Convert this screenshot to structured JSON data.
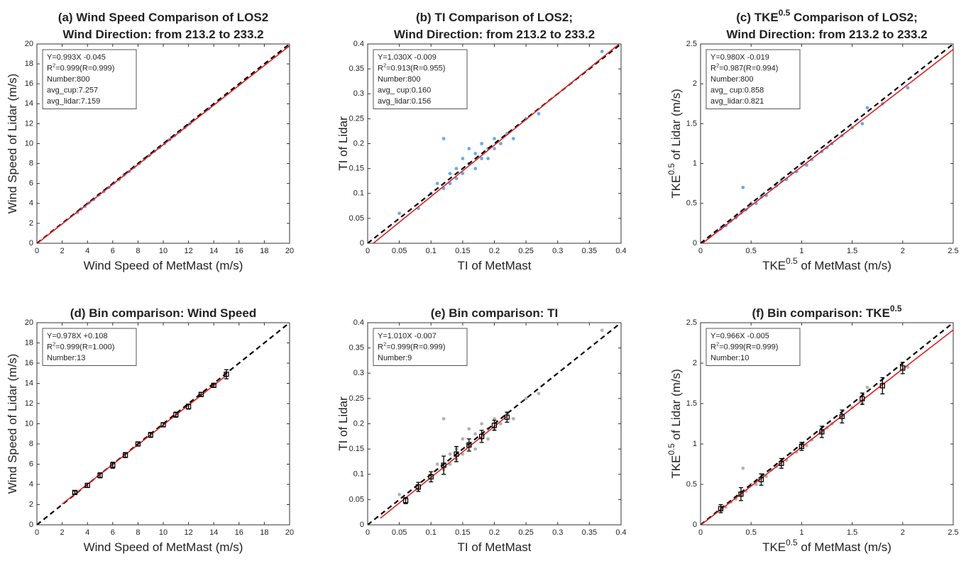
{
  "chart_data": [
    {
      "type": "scatter",
      "title": [
        [
          "(a) Wind Speed Comparison of LOS2"
        ],
        [
          "Wind Direction: from 213.2 to 233.2"
        ]
      ],
      "xlabel": [
        "Wind Speed of MetMast (m/s)"
      ],
      "ylabel": [
        "Wind Speed of Lidar (m/s)"
      ],
      "xlim": [
        0,
        20
      ],
      "ylim": [
        0,
        20
      ],
      "xticks": [
        0,
        2,
        4,
        6,
        8,
        10,
        12,
        14,
        16,
        18,
        20
      ],
      "yticks": [
        0,
        2,
        4,
        6,
        8,
        10,
        12,
        14,
        16,
        18,
        20
      ],
      "annotation": [
        [
          "Y=0.993X -0.045"
        ],
        [
          "R",
          {
            "text": "2",
            "sup": true
          },
          "=0.999(R=0.999)"
        ],
        [
          "Number:800"
        ],
        [
          "avg_cup:7.257"
        ],
        [
          "avg_lidar:7.159"
        ]
      ],
      "series": [
        {
          "kind": "points",
          "color": "#3a8fd9",
          "x": [
            3.2,
            3.5,
            3.8,
            4.1,
            4.5,
            4.9,
            5.3,
            5.7,
            6.1,
            6.5,
            6.9,
            7.3,
            7.7,
            8.1,
            8.5,
            8.9,
            9.3,
            9.7,
            10.1,
            10.5,
            10.9,
            11.3,
            11.7,
            12.1,
            13.6
          ],
          "values": [
            3.1,
            3.45,
            3.7,
            4.05,
            4.4,
            4.85,
            5.2,
            5.6,
            6.05,
            6.4,
            6.85,
            7.2,
            7.65,
            8.0,
            8.45,
            8.8,
            9.25,
            9.6,
            10.0,
            10.4,
            10.8,
            11.2,
            11.6,
            12.0,
            13.5
          ]
        },
        {
          "kind": "line",
          "color": "#000000",
          "dash": true,
          "x": [
            0,
            20
          ],
          "values": [
            0,
            20
          ]
        },
        {
          "kind": "line",
          "color": "#e02020",
          "x": [
            0,
            20
          ],
          "values": [
            -0.045,
            19.815
          ]
        }
      ]
    },
    {
      "type": "scatter",
      "title": [
        [
          "(b) TI Comparison of LOS2;"
        ],
        [
          "Wind Direction: from 213.2 to 233.2"
        ]
      ],
      "xlabel": [
        "TI of MetMast"
      ],
      "ylabel": [
        "TI of Lidar"
      ],
      "xlim": [
        0,
        0.4
      ],
      "ylim": [
        0,
        0.4
      ],
      "xticks": [
        0,
        0.05,
        0.1,
        0.15,
        0.2,
        0.25,
        0.3,
        0.35,
        0.4
      ],
      "yticks": [
        0,
        0.05,
        0.1,
        0.15,
        0.2,
        0.25,
        0.3,
        0.35,
        0.4
      ],
      "annotation": [
        [
          "Y=1.030X -0.009"
        ],
        [
          "R",
          {
            "text": "2",
            "sup": true
          },
          "=0.913(R=0.955)"
        ],
        [
          "Number:800"
        ],
        [
          "avg_ cup:0.160"
        ],
        [
          "avg_lidar:0.156"
        ]
      ],
      "series": [
        {
          "kind": "points",
          "color": "#3a8fd9",
          "x": [
            0.05,
            0.08,
            0.1,
            0.11,
            0.12,
            0.12,
            0.13,
            0.13,
            0.14,
            0.14,
            0.15,
            0.15,
            0.16,
            0.16,
            0.17,
            0.17,
            0.18,
            0.18,
            0.19,
            0.19,
            0.2,
            0.2,
            0.21,
            0.22,
            0.23,
            0.25,
            0.27,
            0.37
          ],
          "values": [
            0.06,
            0.07,
            0.1,
            0.12,
            0.11,
            0.21,
            0.14,
            0.12,
            0.15,
            0.13,
            0.17,
            0.14,
            0.16,
            0.19,
            0.15,
            0.18,
            0.17,
            0.2,
            0.19,
            0.17,
            0.21,
            0.19,
            0.2,
            0.22,
            0.21,
            0.25,
            0.26,
            0.385
          ]
        },
        {
          "kind": "line",
          "color": "#000000",
          "dash": true,
          "x": [
            0,
            0.4
          ],
          "values": [
            0,
            0.4
          ]
        },
        {
          "kind": "line",
          "color": "#e02020",
          "x": [
            0.009,
            0.4
          ],
          "values": [
            0,
            0.403
          ]
        }
      ]
    },
    {
      "type": "scatter",
      "title": [
        [
          "(c) TKE",
          {
            "text": "0.5",
            "sup": true
          },
          " Comparison of LOS2;"
        ],
        [
          "Wind Direction: from 213.2 to 233.2"
        ]
      ],
      "xlabel": [
        "TKE",
        {
          "text": "0.5",
          "sup": true
        },
        " of MetMast (m/s)"
      ],
      "ylabel": [
        "TKE",
        {
          "text": "0.5",
          "sup": true
        },
        " of Lidar (m/s)"
      ],
      "xlim": [
        0,
        2.5
      ],
      "ylim": [
        0,
        2.5
      ],
      "xticks": [
        0,
        0.5,
        1,
        1.5,
        2,
        2.5
      ],
      "yticks": [
        0,
        0.5,
        1,
        1.5,
        2,
        2.5
      ],
      "annotation": [
        [
          "Y=0.980X -0.019"
        ],
        [
          "R",
          {
            "text": "2",
            "sup": true
          },
          "=0.987(R=0.994)"
        ],
        [
          "Number:800"
        ],
        [
          "avg_ cup:0.858"
        ],
        [
          "avg_lidar:0.821"
        ]
      ],
      "series": [
        {
          "kind": "points",
          "color": "#3a8fd9",
          "x": [
            0.2,
            0.25,
            0.3,
            0.35,
            0.4,
            0.42,
            0.45,
            0.5,
            0.55,
            0.6,
            0.65,
            0.7,
            0.75,
            0.8,
            0.85,
            0.9,
            0.95,
            1.0,
            1.05,
            1.1,
            1.2,
            1.25,
            1.3,
            1.4,
            1.5,
            1.6,
            1.65,
            1.8,
            2.05
          ],
          "values": [
            0.18,
            0.22,
            0.28,
            0.32,
            0.38,
            0.7,
            0.42,
            0.5,
            0.5,
            0.58,
            0.6,
            0.68,
            0.72,
            0.78,
            0.8,
            0.88,
            0.9,
            1.0,
            0.98,
            1.05,
            1.15,
            1.2,
            1.25,
            1.35,
            1.45,
            1.5,
            1.7,
            1.75,
            1.95
          ]
        },
        {
          "kind": "line",
          "color": "#000000",
          "dash": true,
          "x": [
            0,
            2.5
          ],
          "values": [
            0,
            2.5
          ]
        },
        {
          "kind": "line",
          "color": "#e02020",
          "x": [
            0,
            2.5
          ],
          "values": [
            -0.019,
            2.431
          ]
        }
      ]
    },
    {
      "type": "scatter",
      "title": [
        [
          "(d) Bin comparison: Wind Speed"
        ]
      ],
      "xlabel": [
        "Wind Speed of MetMast (m/s)"
      ],
      "ylabel": [
        "Wind Speed of Lidar (m/s)"
      ],
      "xlim": [
        0,
        20
      ],
      "ylim": [
        0,
        20
      ],
      "xticks": [
        0,
        2,
        4,
        6,
        8,
        10,
        12,
        14,
        16,
        18,
        20
      ],
      "yticks": [
        0,
        2,
        4,
        6,
        8,
        10,
        12,
        14,
        16,
        18,
        20
      ],
      "annotation": [
        [
          "Y=0.978X +0.108"
        ],
        [
          "R",
          {
            "text": "2",
            "sup": true
          },
          "=0.999(R=1.000)"
        ],
        [
          "Number:13"
        ]
      ],
      "series": [
        {
          "kind": "line",
          "color": "#000000",
          "dash": true,
          "x": [
            0,
            20
          ],
          "values": [
            0,
            20
          ]
        },
        {
          "kind": "line",
          "color": "#e02020",
          "x": [
            2,
            15
          ],
          "values": [
            2.06,
            14.78
          ]
        },
        {
          "kind": "errorbar",
          "color": "#000000",
          "x": [
            3,
            4,
            5,
            6,
            7,
            8,
            9,
            10,
            11,
            12,
            13,
            14,
            15
          ],
          "values": [
            3.2,
            3.9,
            4.9,
            5.9,
            6.9,
            8.0,
            8.9,
            9.9,
            10.9,
            11.7,
            12.9,
            13.8,
            14.9
          ],
          "errors": [
            0.15,
            0.2,
            0.25,
            0.3,
            0.25,
            0.2,
            0.25,
            0.2,
            0.25,
            0.25,
            0.2,
            0.2,
            0.45
          ]
        }
      ]
    },
    {
      "type": "scatter",
      "title": [
        [
          "(e) Bin comparison: TI"
        ]
      ],
      "xlabel": [
        "TI of MetMast"
      ],
      "ylabel": [
        "TI of Lidar"
      ],
      "xlim": [
        0,
        0.4
      ],
      "ylim": [
        0,
        0.4
      ],
      "xticks": [
        0,
        0.05,
        0.1,
        0.15,
        0.2,
        0.25,
        0.3,
        0.35,
        0.4
      ],
      "yticks": [
        0,
        0.05,
        0.1,
        0.15,
        0.2,
        0.25,
        0.3,
        0.35,
        0.4
      ],
      "annotation": [
        [
          "Y=1.010X -0.007"
        ],
        [
          "R",
          {
            "text": "2",
            "sup": true
          },
          "=0.999(R=0.999)"
        ],
        [
          "Number:9"
        ]
      ],
      "series": [
        {
          "kind": "points",
          "color": "#9a9a9a",
          "x": [
            0.05,
            0.08,
            0.1,
            0.11,
            0.12,
            0.12,
            0.13,
            0.13,
            0.14,
            0.14,
            0.15,
            0.15,
            0.16,
            0.16,
            0.17,
            0.17,
            0.18,
            0.18,
            0.19,
            0.19,
            0.2,
            0.2,
            0.21,
            0.22,
            0.23,
            0.25,
            0.27,
            0.37
          ],
          "values": [
            0.06,
            0.07,
            0.1,
            0.12,
            0.11,
            0.21,
            0.14,
            0.12,
            0.15,
            0.13,
            0.17,
            0.14,
            0.16,
            0.19,
            0.15,
            0.18,
            0.17,
            0.2,
            0.19,
            0.17,
            0.21,
            0.19,
            0.2,
            0.22,
            0.21,
            0.25,
            0.26,
            0.385
          ]
        },
        {
          "kind": "line",
          "color": "#000000",
          "dash": true,
          "x": [
            0,
            0.4
          ],
          "values": [
            0,
            0.4
          ]
        },
        {
          "kind": "line",
          "color": "#e02020",
          "x": [
            0.02,
            0.22
          ],
          "values": [
            0.013,
            0.215
          ]
        },
        {
          "kind": "errorbar",
          "color": "#000000",
          "x": [
            0.06,
            0.08,
            0.1,
            0.12,
            0.14,
            0.16,
            0.18,
            0.2,
            0.22
          ],
          "values": [
            0.048,
            0.075,
            0.095,
            0.118,
            0.14,
            0.158,
            0.175,
            0.197,
            0.213
          ],
          "errors": [
            0.006,
            0.009,
            0.01,
            0.018,
            0.015,
            0.012,
            0.012,
            0.01,
            0.01
          ]
        }
      ]
    },
    {
      "type": "scatter",
      "title": [
        [
          "(f) Bin comparison: TKE",
          {
            "text": "0.5",
            "sup": true
          }
        ]
      ],
      "xlabel": [
        "TKE",
        {
          "text": "0.5",
          "sup": true
        },
        " of MetMast (m/s)"
      ],
      "ylabel": [
        "TKE",
        {
          "text": "0.5",
          "sup": true
        },
        " of Lidar (m/s)"
      ],
      "xlim": [
        0,
        2.5
      ],
      "ylim": [
        0,
        2.5
      ],
      "xticks": [
        0,
        0.5,
        1,
        1.5,
        2,
        2.5
      ],
      "yticks": [
        0,
        0.5,
        1,
        1.5,
        2,
        2.5
      ],
      "annotation": [
        [
          "Y=0.966X -0.005"
        ],
        [
          "R",
          {
            "text": "2",
            "sup": true
          },
          "=0.999(R=0.999)"
        ],
        [
          "Number:10"
        ]
      ],
      "series": [
        {
          "kind": "points",
          "color": "#9a9a9a",
          "x": [
            0.2,
            0.25,
            0.3,
            0.35,
            0.4,
            0.42,
            0.45,
            0.5,
            0.55,
            0.6,
            0.65,
            0.7,
            0.75,
            0.8,
            0.85,
            0.9,
            0.95,
            1.0,
            1.05,
            1.1,
            1.2,
            1.25,
            1.3,
            1.4,
            1.5,
            1.6,
            1.65,
            1.8,
            2.05
          ],
          "values": [
            0.18,
            0.22,
            0.28,
            0.32,
            0.38,
            0.7,
            0.42,
            0.5,
            0.5,
            0.58,
            0.6,
            0.68,
            0.72,
            0.78,
            0.8,
            0.88,
            0.9,
            1.0,
            0.98,
            1.05,
            1.15,
            1.2,
            1.25,
            1.35,
            1.45,
            1.5,
            1.7,
            1.75,
            1.95
          ]
        },
        {
          "kind": "line",
          "color": "#000000",
          "dash": true,
          "x": [
            0,
            2.5
          ],
          "values": [
            0,
            2.5
          ]
        },
        {
          "kind": "line",
          "color": "#e02020",
          "x": [
            0,
            2.5
          ],
          "values": [
            -0.005,
            2.41
          ]
        },
        {
          "kind": "errorbar",
          "color": "#000000",
          "x": [
            0.2,
            0.4,
            0.6,
            0.8,
            1.0,
            1.2,
            1.4,
            1.6,
            1.8,
            2.0
          ],
          "values": [
            0.2,
            0.38,
            0.56,
            0.76,
            0.97,
            1.15,
            1.34,
            1.56,
            1.72,
            1.94
          ],
          "errors": [
            0.05,
            0.08,
            0.07,
            0.06,
            0.05,
            0.07,
            0.08,
            0.07,
            0.1,
            0.07
          ]
        }
      ]
    }
  ]
}
